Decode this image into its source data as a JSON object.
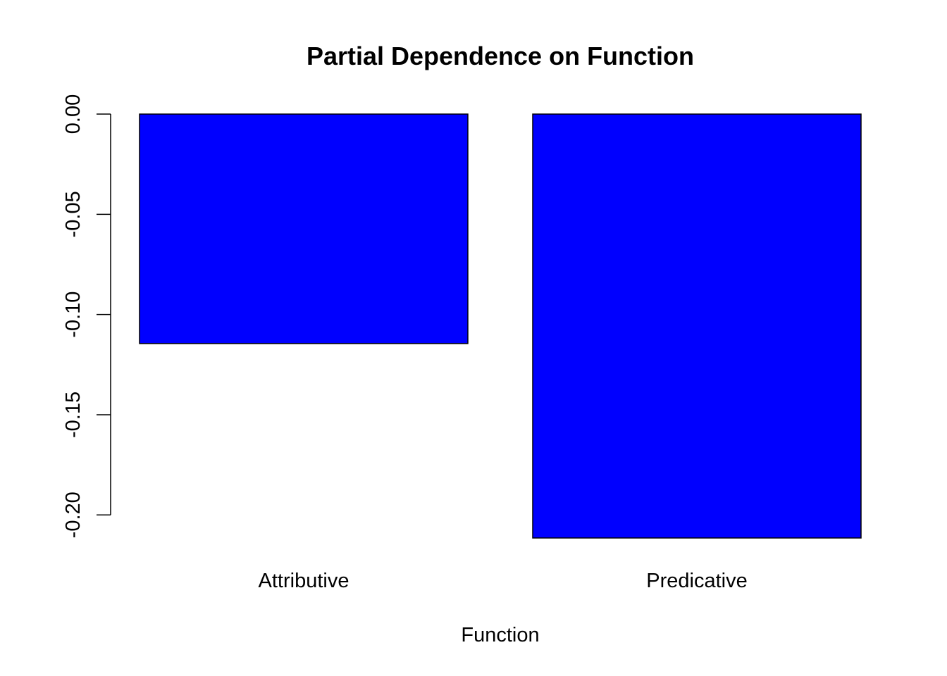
{
  "chart_data": {
    "type": "bar",
    "title": "Partial Dependence on Function",
    "xlabel": "Function",
    "ylabel": "",
    "categories": [
      "Attributive",
      "Predicative"
    ],
    "values": [
      -0.1145,
      -0.2115
    ],
    "ylim": [
      -0.2115,
      0.0
    ],
    "yticks": [
      "0.00",
      "-0.05",
      "-0.10",
      "-0.15",
      "-0.20"
    ],
    "ytick_values": [
      0.0,
      -0.05,
      -0.1,
      -0.15,
      -0.2
    ],
    "bar_color": "#0000ff",
    "grid": false,
    "legend": "none"
  }
}
